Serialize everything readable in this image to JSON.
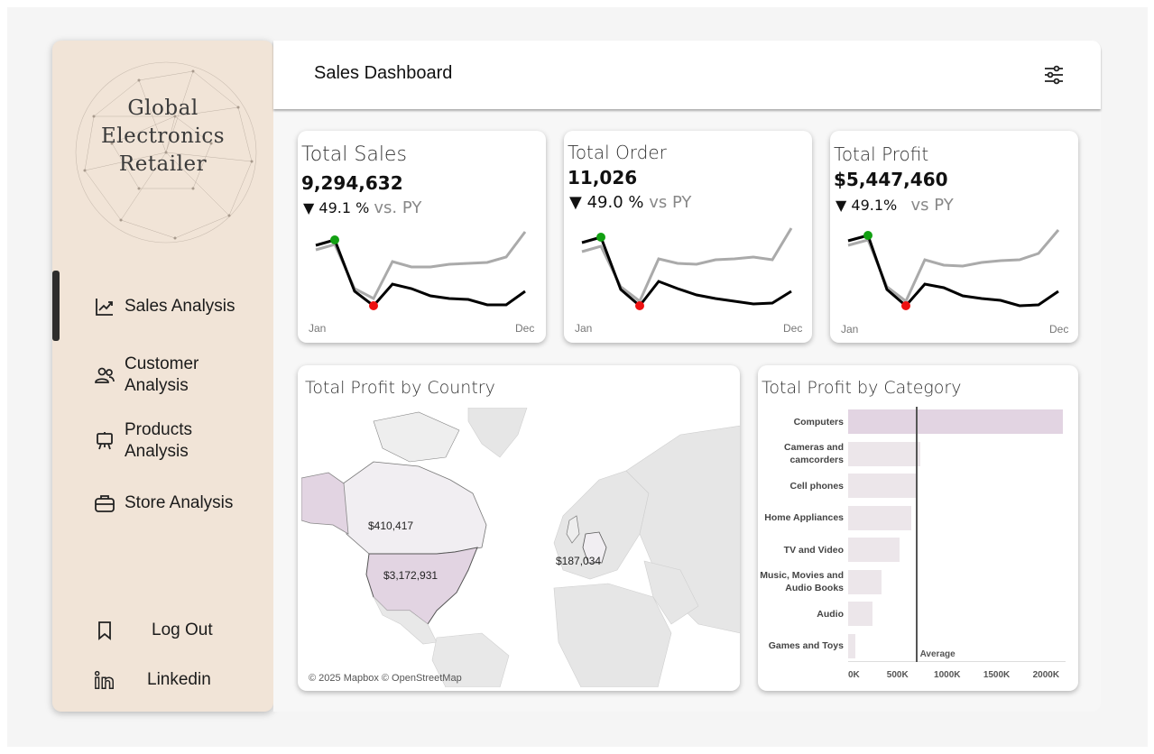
{
  "sidebar": {
    "brand_lines": [
      "Global",
      "Electronics",
      "Retailer"
    ],
    "nav": [
      {
        "label": "Sales Analysis",
        "icon": "trend-chart-icon"
      },
      {
        "label_lines": [
          "Customer",
          "Analysis"
        ],
        "icon": "users-icon"
      },
      {
        "label_lines": [
          "Products",
          "Analysis"
        ],
        "icon": "easel-icon"
      },
      {
        "label": "Store Analysis",
        "icon": "briefcase-icon"
      }
    ],
    "logout_label": "Log Out",
    "linkedin_label": "Linkedin"
  },
  "header": {
    "title": "Sales Dashboard",
    "filter_icon": "sliders-icon"
  },
  "kpis": [
    {
      "title": "Total Sales",
      "value": "9,294,632",
      "change": "▼ 49.1 %",
      "vs": "vs. PY"
    },
    {
      "title": "Total Order",
      "value": "11,026",
      "change": "▼ 49.0 %",
      "vs": "vs PY"
    },
    {
      "title": "Total Profit",
      "value": "$5,447,460",
      "change": "▼ 49.1%",
      "vs": "vs PY"
    }
  ],
  "spark_axis": {
    "start": "Jan",
    "end": "Dec"
  },
  "colors": {
    "current_year": "#000000",
    "prior_year": "#aaaaaa",
    "max_marker": "#12a012",
    "min_marker": "#ee1111",
    "highlight": "#e2d4e2",
    "bar": "#ece6ea"
  },
  "map": {
    "title": "Total Profit by Country",
    "labels": [
      {
        "text": "$410,417"
      },
      {
        "text": "$3,172,931"
      },
      {
        "text": "$187,034"
      }
    ],
    "attribution": "© 2025 Mapbox © OpenStreetMap"
  },
  "chart_data": {
    "type": "bar",
    "title": "Total Profit by Category",
    "orientation": "horizontal",
    "categories": [
      "Computers",
      "Cameras and camcorders",
      "Cell phones",
      "Home Appliances",
      "TV and Video",
      "Music, Movies and Audio Books",
      "Audio",
      "Games and Toys"
    ],
    "values": [
      2170000,
      730000,
      700000,
      640000,
      520000,
      340000,
      250000,
      70000
    ],
    "reference_line": {
      "label": "Average",
      "value": 690000
    },
    "xlim": [
      0,
      2200000
    ],
    "x_ticks": [
      "0K",
      "500K",
      "1000K",
      "1500K",
      "2000K"
    ],
    "x_tick_values": [
      0,
      500000,
      1000000,
      1500000,
      2000000
    ]
  }
}
